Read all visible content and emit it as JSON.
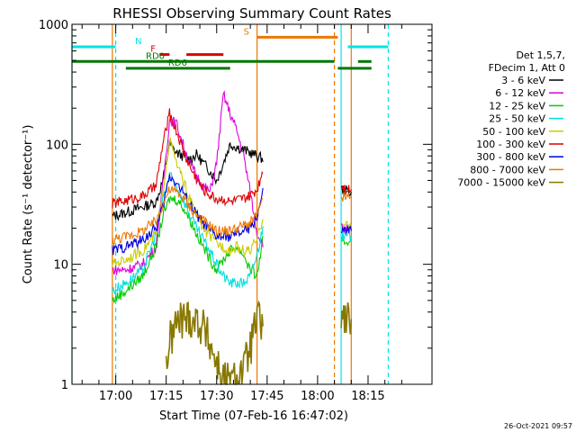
{
  "chart_data": {
    "type": "line",
    "title": "RHESSI Observing Summary Count Rates",
    "xlabel": "Start Time (07-Feb-16 16:47:02)",
    "ylabel": "Count Rate (s⁻¹ detector⁻¹)",
    "y_scale": "log",
    "xlim": [
      "16:47",
      "18:34"
    ],
    "ylim": [
      1,
      1000
    ],
    "x_ticks": [
      "17:00",
      "17:15",
      "17:30",
      "17:45",
      "18:00",
      "18:15"
    ],
    "y_ticks": [
      "1",
      "10",
      "100",
      "1000"
    ],
    "footer_date": "26-Oct-2021 09:57",
    "legend": {
      "header": [
        "Det 1,5,7,",
        "FDecim 1, Att 0"
      ],
      "placement": "right"
    },
    "series": [
      {
        "name": "3 - 6 keV",
        "color": "#000000",
        "x": [
          "16:59",
          "17:03",
          "17:08",
          "17:12",
          "17:14",
          "17:16",
          "17:18",
          "17:20",
          "17:22",
          "17:24",
          "17:26",
          "17:28",
          "17:30",
          "17:32",
          "17:34",
          "17:36",
          "17:38",
          "17:40",
          "17:42",
          "17:44",
          "18:07",
          "18:10"
        ],
        "y": [
          25,
          27,
          30,
          33,
          50,
          100,
          85,
          80,
          75,
          82,
          70,
          60,
          50,
          70,
          100,
          95,
          90,
          85,
          80,
          75,
          42,
          40
        ]
      },
      {
        "name": "6 - 12 keV",
        "color": "#dd00dd",
        "x": [
          "16:59",
          "17:03",
          "17:08",
          "17:12",
          "17:14",
          "17:16",
          "17:18",
          "17:20",
          "17:22",
          "17:24",
          "17:26",
          "17:28",
          "17:30",
          "17:32",
          "17:34",
          "17:36",
          "17:38",
          "17:40",
          "17:42",
          "17:44",
          "18:07",
          "18:10"
        ],
        "y": [
          9,
          9,
          10,
          14,
          45,
          160,
          150,
          100,
          70,
          55,
          45,
          40,
          70,
          260,
          180,
          130,
          80,
          40,
          18,
          15,
          20,
          19
        ]
      },
      {
        "name": "12 - 25 keV",
        "color": "#00cc00",
        "x": [
          "16:59",
          "17:03",
          "17:08",
          "17:12",
          "17:14",
          "17:16",
          "17:18",
          "17:20",
          "17:22",
          "17:24",
          "17:26",
          "17:28",
          "17:30",
          "17:32",
          "17:34",
          "17:36",
          "17:38",
          "17:40",
          "17:42",
          "17:44",
          "18:07",
          "18:10"
        ],
        "y": [
          5,
          6,
          8,
          14,
          25,
          35,
          35,
          30,
          24,
          18,
          14,
          11,
          9,
          11,
          13,
          14,
          12,
          9,
          8,
          18,
          15,
          16
        ]
      },
      {
        "name": "25 - 50 keV",
        "color": "#00dddd",
        "x": [
          "16:59",
          "17:03",
          "17:08",
          "17:12",
          "17:14",
          "17:16",
          "17:18",
          "17:20",
          "17:22",
          "17:24",
          "17:26",
          "17:28",
          "17:30",
          "17:32",
          "17:34",
          "17:36",
          "17:38",
          "17:40",
          "17:42",
          "17:44",
          "18:07",
          "18:10"
        ],
        "y": [
          6,
          7,
          9,
          18,
          35,
          55,
          45,
          35,
          26,
          20,
          16,
          13,
          10,
          8,
          7,
          7,
          7,
          8,
          12,
          22,
          17,
          17
        ]
      },
      {
        "name": "50 - 100 keV",
        "color": "#cccc00",
        "x": [
          "16:59",
          "17:03",
          "17:08",
          "17:12",
          "17:14",
          "17:16",
          "17:18",
          "17:20",
          "17:22",
          "17:24",
          "17:26",
          "17:28",
          "17:30",
          "17:32",
          "17:34",
          "17:36",
          "17:38",
          "17:40",
          "17:42",
          "17:44",
          "18:07",
          "18:10"
        ],
        "y": [
          10,
          11,
          13,
          18,
          40,
          110,
          70,
          50,
          35,
          26,
          20,
          17,
          15,
          14,
          13,
          14,
          13,
          13,
          16,
          26,
          21,
          21
        ]
      },
      {
        "name": "100 - 300 keV",
        "color": "#dd0000",
        "x": [
          "16:59",
          "17:03",
          "17:08",
          "17:12",
          "17:14",
          "17:16",
          "17:18",
          "17:20",
          "17:22",
          "17:24",
          "17:26",
          "17:28",
          "17:30",
          "17:32",
          "17:34",
          "17:36",
          "17:38",
          "17:40",
          "17:42",
          "17:44",
          "18:07",
          "18:10"
        ],
        "y": [
          32,
          34,
          37,
          45,
          100,
          180,
          130,
          90,
          65,
          52,
          42,
          38,
          35,
          35,
          33,
          34,
          35,
          37,
          42,
          65,
          45,
          42
        ]
      },
      {
        "name": "300 - 800 keV",
        "color": "#0000dd",
        "x": [
          "16:59",
          "17:03",
          "17:08",
          "17:12",
          "17:14",
          "17:16",
          "17:18",
          "17:20",
          "17:22",
          "17:24",
          "17:26",
          "17:28",
          "17:30",
          "17:32",
          "17:34",
          "17:36",
          "17:38",
          "17:40",
          "17:42",
          "17:44",
          "18:07",
          "18:10"
        ],
        "y": [
          13,
          14,
          16,
          20,
          30,
          55,
          48,
          40,
          32,
          26,
          22,
          19,
          17,
          17,
          17,
          18,
          19,
          20,
          25,
          42,
          19,
          19
        ]
      },
      {
        "name": "800 - 7000 keV",
        "color": "#ee7700",
        "x": [
          "16:59",
          "17:03",
          "17:08",
          "17:12",
          "17:14",
          "17:16",
          "17:18",
          "17:20",
          "17:22",
          "17:24",
          "17:26",
          "17:28",
          "17:30",
          "17:32",
          "17:34",
          "17:36",
          "17:38",
          "17:40",
          "17:42",
          "17:44",
          "18:07",
          "18:10"
        ],
        "y": [
          16,
          17,
          19,
          23,
          32,
          42,
          40,
          36,
          30,
          26,
          23,
          21,
          19,
          19,
          19,
          20,
          21,
          22,
          26,
          35,
          36,
          36
        ]
      },
      {
        "name": "7000 - 15000 keV",
        "color": "#887700",
        "x": [
          "17:15",
          "17:16",
          "17:18",
          "17:20",
          "17:22",
          "17:24",
          "17:26",
          "17:28",
          "17:30",
          "17:32",
          "17:34",
          "17:38",
          "17:40",
          "17:42",
          "17:44",
          "18:07",
          "18:10"
        ],
        "y": [
          1.5,
          2.2,
          3.2,
          3.5,
          3.6,
          3.4,
          3.0,
          2.2,
          1.5,
          1.1,
          1.0,
          1.3,
          2.0,
          3.5,
          3.0,
          3.5,
          3.5
        ]
      }
    ],
    "state_bars": [
      {
        "label": "N",
        "color": "#00e5e5",
        "level": 650,
        "segments": [
          [
            "16:47",
            "17:00"
          ],
          [
            "18:09",
            "18:21"
          ]
        ]
      },
      {
        "label": "F",
        "color": "#dd0000",
        "level": 560,
        "segments": [
          [
            "17:13",
            "17:16"
          ],
          [
            "17:21",
            "17:32"
          ]
        ]
      },
      {
        "label": "S",
        "color": "#ee7700",
        "level": 780,
        "segments": [
          [
            "17:42",
            "18:06"
          ]
        ]
      },
      {
        "label": "RD0",
        "color": "#007700",
        "level": 490,
        "segments": [
          [
            "16:47",
            "17:35"
          ],
          [
            "17:35",
            "18:05"
          ],
          [
            "18:12",
            "18:16"
          ]
        ]
      },
      {
        "label": "RD6",
        "color": "#007700",
        "level": 430,
        "segments": [
          [
            "17:03",
            "17:34"
          ],
          [
            "18:06",
            "18:16"
          ]
        ]
      }
    ],
    "vlines": [
      {
        "t": "16:47",
        "color": "#00e5e5",
        "style": "solid"
      },
      {
        "t": "17:00",
        "color": "#00e5e5",
        "style": "dashed"
      },
      {
        "t": "16:59",
        "color": "#ee7700",
        "style": "solid"
      },
      {
        "t": "17:42",
        "color": "#ee7700",
        "style": "solid"
      },
      {
        "t": "18:05",
        "color": "#ee7700",
        "style": "dashed"
      },
      {
        "t": "18:07",
        "color": "#00e5e5",
        "style": "solid"
      },
      {
        "t": "18:10",
        "color": "#ee7700",
        "style": "solid"
      },
      {
        "t": "18:21",
        "color": "#00e5e5",
        "style": "dashed"
      }
    ]
  }
}
